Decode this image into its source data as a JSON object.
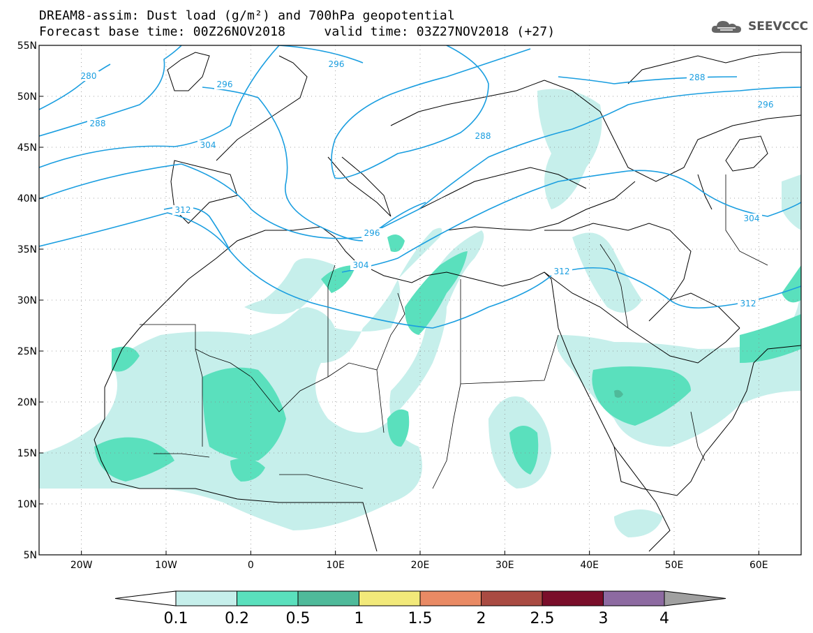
{
  "title": {
    "line1": "DREAM8-assim: Dust load (g/m²) and 700hPa geopotential",
    "line2": "Forecast base time: 00Z26NOV2018     valid time: 03Z27NOV2018 (+27)"
  },
  "logo": {
    "text": "SEEVCCC",
    "icon": "cloud-icon"
  },
  "axes": {
    "lon_ticks": [
      "20W",
      "10W",
      "0",
      "10E",
      "20E",
      "30E",
      "40E",
      "50E",
      "60E"
    ],
    "lat_ticks": [
      "55N",
      "50N",
      "45N",
      "40N",
      "35N",
      "30N",
      "25N",
      "20N",
      "15N",
      "10N",
      "5N"
    ],
    "lon_range": [
      -25,
      65
    ],
    "lat_range": [
      5,
      55
    ],
    "grid": "dotted"
  },
  "contours": {
    "color": "#1a9ee0",
    "labels": [
      "280",
      "288",
      "296",
      "304",
      "312",
      "296",
      "288",
      "288",
      "296",
      "296",
      "304",
      "312",
      "312",
      "304"
    ]
  },
  "colorbar": {
    "labels": [
      "0.1",
      "0.2",
      "0.5",
      "1",
      "1.5",
      "2",
      "2.5",
      "3",
      "4"
    ],
    "colors": [
      "#ffffff",
      "#c6efeb",
      "#5ae0bd",
      "#4fba9a",
      "#f2e97a",
      "#e98a64",
      "#a94b42",
      "#7a0e2a",
      "#8d6aa1",
      "#a0a0a0"
    ]
  }
}
